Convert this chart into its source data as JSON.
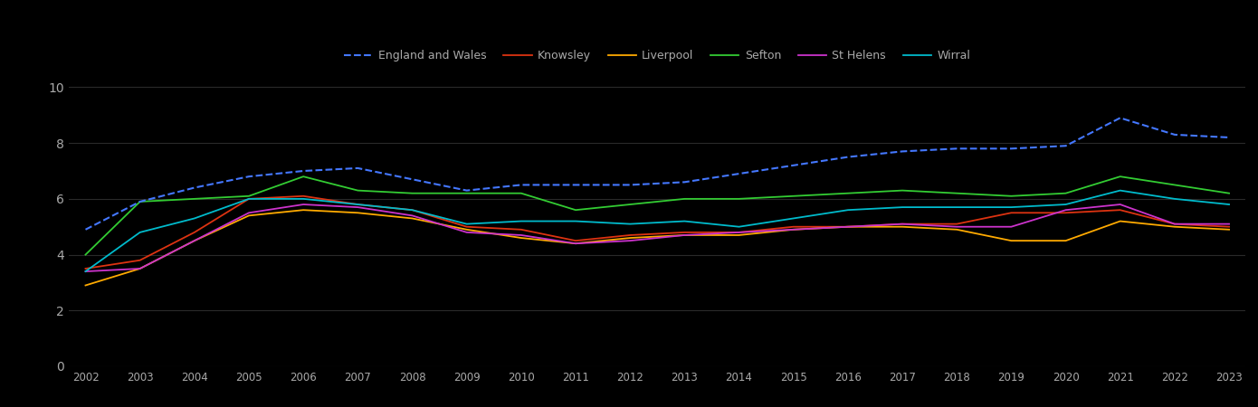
{
  "years": [
    2002,
    2003,
    2004,
    2005,
    2006,
    2007,
    2008,
    2009,
    2010,
    2011,
    2012,
    2013,
    2014,
    2015,
    2016,
    2017,
    2018,
    2019,
    2020,
    2021,
    2022,
    2023
  ],
  "england_wales": [
    4.9,
    5.9,
    6.4,
    6.8,
    7.0,
    7.1,
    6.7,
    6.3,
    6.5,
    6.5,
    6.5,
    6.6,
    6.9,
    7.2,
    7.5,
    7.7,
    7.8,
    7.8,
    7.9,
    8.9,
    8.3,
    8.2
  ],
  "knowsley": [
    3.5,
    3.8,
    4.8,
    6.0,
    6.1,
    5.8,
    5.6,
    5.0,
    4.9,
    4.5,
    4.7,
    4.8,
    4.8,
    5.0,
    5.0,
    5.1,
    5.1,
    5.5,
    5.5,
    5.6,
    5.1,
    5.0
  ],
  "liverpool": [
    2.9,
    3.5,
    4.5,
    5.4,
    5.6,
    5.5,
    5.3,
    4.9,
    4.6,
    4.4,
    4.6,
    4.7,
    4.7,
    4.9,
    5.0,
    5.0,
    4.9,
    4.5,
    4.5,
    5.2,
    5.0,
    4.9
  ],
  "sefton": [
    4.0,
    5.9,
    6.0,
    6.1,
    6.8,
    6.3,
    6.2,
    6.2,
    6.2,
    5.6,
    5.8,
    6.0,
    6.0,
    6.1,
    6.2,
    6.3,
    6.2,
    6.1,
    6.2,
    6.8,
    6.5,
    6.2
  ],
  "st_helens": [
    3.4,
    3.5,
    4.5,
    5.5,
    5.8,
    5.7,
    5.4,
    4.8,
    4.7,
    4.4,
    4.5,
    4.7,
    4.8,
    4.9,
    5.0,
    5.1,
    5.0,
    5.0,
    5.6,
    5.8,
    5.1,
    5.1
  ],
  "wirral": [
    3.4,
    4.8,
    5.3,
    6.0,
    6.0,
    5.8,
    5.6,
    5.1,
    5.2,
    5.2,
    5.1,
    5.2,
    5.0,
    5.3,
    5.6,
    5.7,
    5.7,
    5.7,
    5.8,
    6.3,
    6.0,
    5.8
  ],
  "colors": {
    "england_wales": "#4477ff",
    "knowsley": "#dd3311",
    "liverpool": "#ffaa00",
    "sefton": "#33cc33",
    "st_helens": "#cc33cc",
    "wirral": "#00bbcc"
  },
  "background_color": "#000000",
  "text_color": "#aaaaaa",
  "grid_color": "#2a2a2a",
  "ylim": [
    0,
    10.5
  ],
  "yticks": [
    0,
    2,
    4,
    6,
    8,
    10
  ],
  "legend_labels": [
    "England and Wales",
    "Knowsley",
    "Liverpool",
    "Sefton",
    "St Helens",
    "Wirral"
  ]
}
